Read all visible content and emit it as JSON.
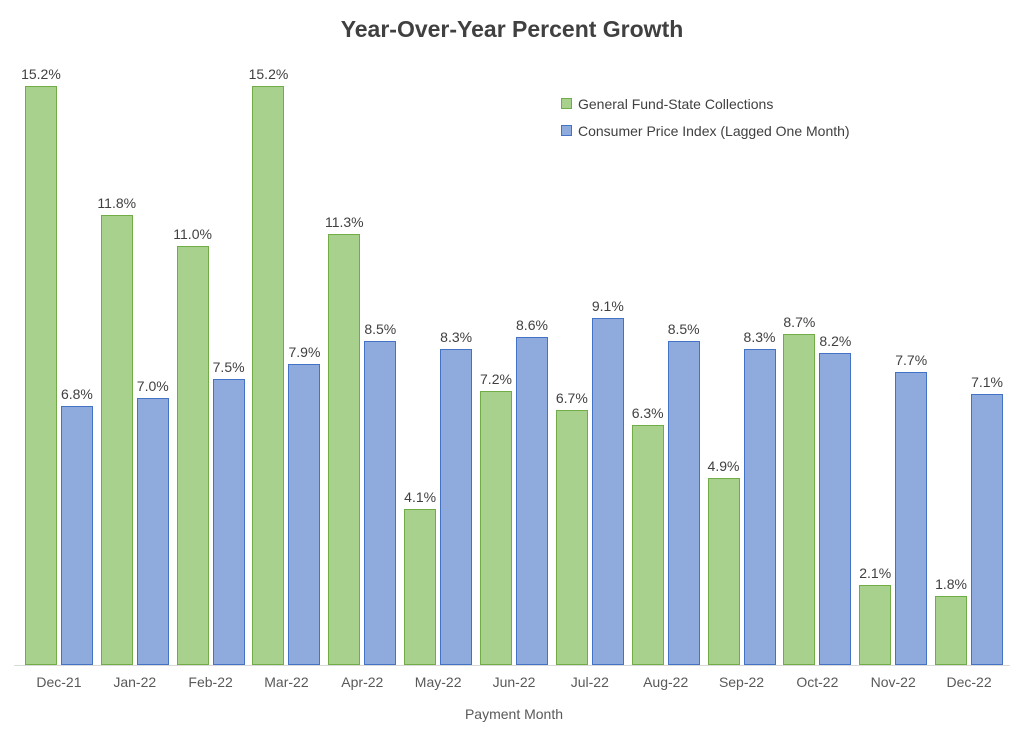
{
  "title": "Year-Over-Year Percent Growth",
  "colors": {
    "title_text": "#404040",
    "data_label_text": "#404040",
    "axis_text": "#595959",
    "axis_line": "#d9d9d9",
    "green_fill": "#a9d18e",
    "green_border": "#70ad47",
    "blue_fill": "#8faadc",
    "blue_border": "#4472c4"
  },
  "chart_data": {
    "type": "bar",
    "title": "Year-Over-Year Percent Growth",
    "xlabel": "Payment Month",
    "ylabel": "",
    "ylim": [
      0,
      16
    ],
    "grid": false,
    "legend_position": "top-right",
    "data_labels": true,
    "categories": [
      "Dec-21",
      "Jan-22",
      "Feb-22",
      "Mar-22",
      "Apr-22",
      "May-22",
      "Jun-22",
      "Jul-22",
      "Aug-22",
      "Sep-22",
      "Oct-22",
      "Nov-22",
      "Dec-22"
    ],
    "series": [
      {
        "name": "General Fund-State Collections",
        "fill": "#a9d18e",
        "border": "#70ad47",
        "values": [
          15.2,
          11.8,
          11.0,
          15.2,
          11.3,
          4.1,
          7.2,
          6.7,
          6.3,
          4.9,
          8.7,
          2.1,
          1.8
        ],
        "labels": [
          "15.2%",
          "11.8%",
          "11.0%",
          "15.2%",
          "11.3%",
          "4.1%",
          "7.2%",
          "6.7%",
          "6.3%",
          "4.9%",
          "8.7%",
          "2.1%",
          "1.8%"
        ]
      },
      {
        "name": "Consumer Price Index (Lagged One Month)",
        "fill": "#8faadc",
        "border": "#4472c4",
        "values": [
          6.8,
          7.0,
          7.5,
          7.9,
          8.5,
          8.3,
          8.6,
          9.1,
          8.5,
          8.3,
          8.2,
          7.7,
          7.1
        ],
        "labels": [
          "6.8%",
          "7.0%",
          "7.5%",
          "7.9%",
          "8.5%",
          "8.3%",
          "8.6%",
          "9.1%",
          "8.5%",
          "8.3%",
          "8.2%",
          "7.7%",
          "7.1%"
        ]
      }
    ]
  }
}
